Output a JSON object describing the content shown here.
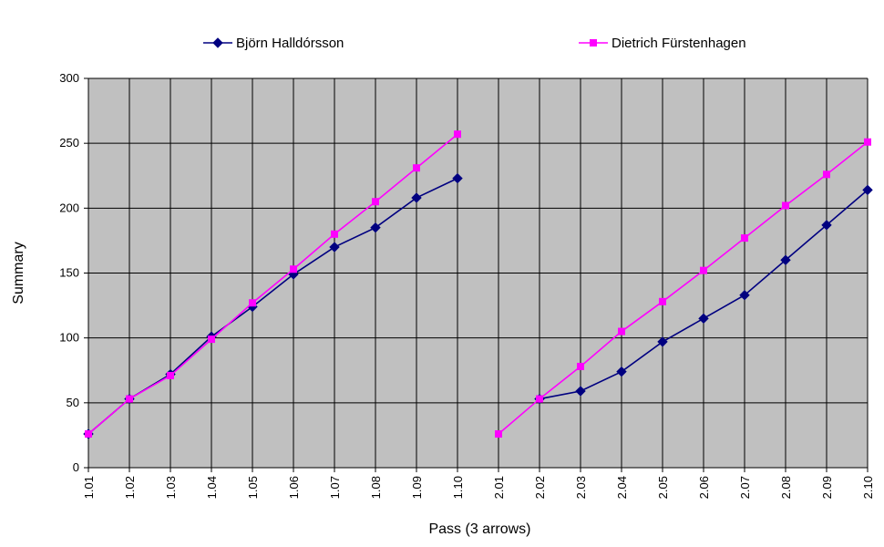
{
  "chart_data": {
    "type": "line",
    "xlabel": "Pass (3 arrows)",
    "ylabel": "Summary",
    "ylim": [
      0,
      300
    ],
    "yticks": [
      0,
      50,
      100,
      150,
      200,
      250,
      300
    ],
    "categories": [
      "1.01",
      "1.02",
      "1.03",
      "1.04",
      "1.05",
      "1.06",
      "1.07",
      "1.08",
      "1.09",
      "1.10",
      "2.01",
      "2.02",
      "2.03",
      "2.04",
      "2.05",
      "2.06",
      "2.07",
      "2.08",
      "2.09",
      "2.10"
    ],
    "grid": true,
    "legend_position": "top",
    "series": [
      {
        "name": "Björn Halldórsson",
        "color": "#000080",
        "marker": "diamond",
        "values": [
          26,
          53,
          72,
          101,
          124,
          149,
          170,
          185,
          208,
          223,
          null,
          53,
          59,
          74,
          97,
          115,
          133,
          160,
          187,
          214
        ]
      },
      {
        "name": "Dietrich Fürstenhagen",
        "color": "#FF00FF",
        "marker": "square",
        "values": [
          26,
          53,
          71,
          99,
          127,
          153,
          180,
          205,
          231,
          257,
          26,
          53,
          78,
          105,
          128,
          152,
          177,
          202,
          226,
          251
        ]
      }
    ]
  }
}
